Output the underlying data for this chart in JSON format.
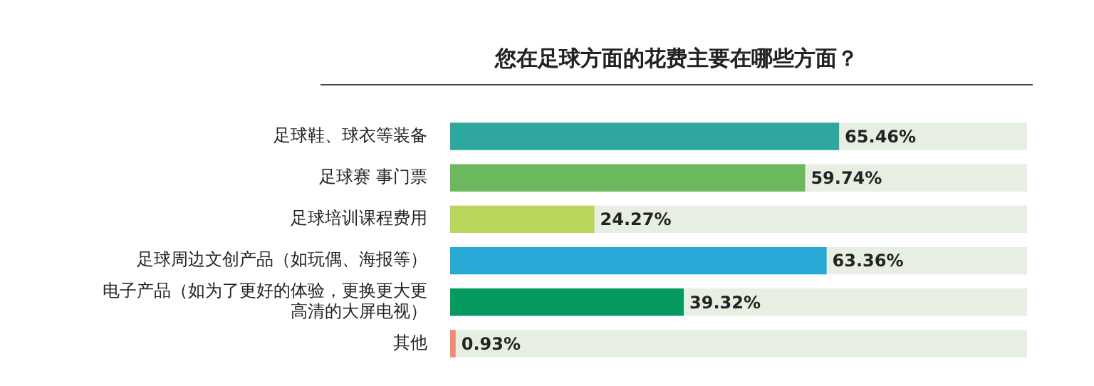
{
  "chart_data": {
    "type": "bar",
    "orientation": "horizontal",
    "title": "您在足球方面的花费主要在哪些方面？",
    "categories": [
      "足球鞋、球衣等装备",
      "足球赛 事门票",
      "足球培训课程费用",
      "足球周边文创产品（如玩偶、海报等）",
      "电子产品（如为了更好的体验，更换更大更高清的大屏电视）",
      "其他"
    ],
    "values": [
      65.46,
      59.74,
      24.27,
      63.36,
      39.32,
      0.93
    ],
    "colors": [
      "#2ea89e",
      "#6cb85c",
      "#b9d65a",
      "#27a9d6",
      "#079a60",
      "#f08a72"
    ],
    "value_labels": [
      "65.46%",
      "59.74%",
      "24.27%",
      "63.36%",
      "39.32%",
      "0.93%"
    ],
    "tick_labels": "y"
  }
}
